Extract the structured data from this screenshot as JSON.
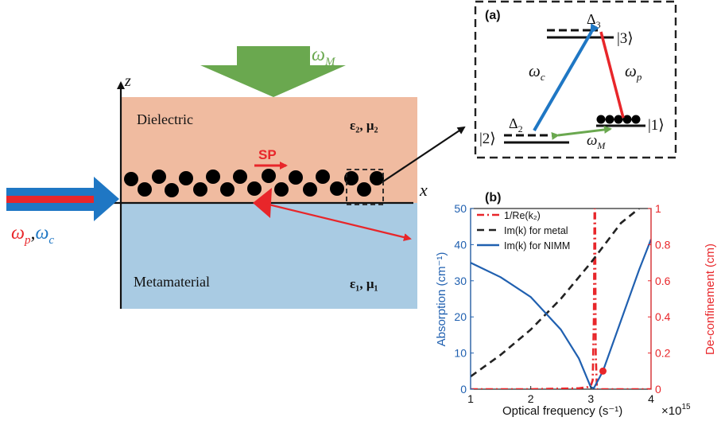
{
  "schematic": {
    "axis_z": "z",
    "axis_x": "x",
    "pump_label": "ω",
    "pump_sub": "M",
    "upper_medium": "Dielectric",
    "upper_params": "ε₂,  μ₂",
    "lower_medium": "Metamaterial",
    "lower_params": "ε₁,  μ₁",
    "sp_label": "SP",
    "probe_label_p": "ω",
    "probe_sub_p": "p",
    "comma": ",",
    "probe_label_c": "ω",
    "probe_sub_c": "c",
    "colors": {
      "dielectric": "#f0bba0",
      "metamaterial": "#a9cbe3",
      "pump_arrow": "#6aa84f",
      "probe_red": "#e8262a",
      "probe_blue": "#1f77c4",
      "sp_red": "#e8262a"
    }
  },
  "level_diagram": {
    "panel_label": "(a)",
    "delta3": "Δ",
    "delta3_sub": "3",
    "delta2": "Δ",
    "delta2_sub": "2",
    "ket3": "|3⟩",
    "ket2": "|2⟩",
    "ket1": "|1⟩",
    "coupling": "ω",
    "coupling_sub": "c",
    "probe": "ω",
    "probe_sub": "p",
    "microwave": "ω",
    "microwave_sub": "M"
  },
  "chart_data": {
    "type": "line",
    "panel_label": "(b)",
    "xlabel": "Optical frequency (s⁻¹)",
    "x_multiplier": "×10",
    "x_multiplier_exp": "15",
    "ylabel_left": "Absorption (cm⁻¹)",
    "ylabel_right": "De-confinement (cm)",
    "xlim": [
      1,
      4
    ],
    "ylim_left": [
      0,
      50
    ],
    "ylim_right": [
      0,
      1
    ],
    "x_ticks": [
      "1",
      "2",
      "3",
      "4"
    ],
    "y_ticks_left": [
      "0",
      "10",
      "20",
      "30",
      "40",
      "50"
    ],
    "y_ticks_right": [
      "0",
      "0.2",
      "0.4",
      "0.6",
      "0.8",
      "1"
    ],
    "series": [
      {
        "name": "1/Re(k₂)",
        "axis": "right",
        "color": "#e8262a",
        "style": "dashdot",
        "x": [
          1.0,
          2.0,
          2.8,
          2.95,
          3.0,
          3.03,
          3.05,
          3.06,
          3.07,
          3.08,
          3.1,
          3.2,
          4.0
        ],
        "y": [
          0.0,
          0.0,
          0.005,
          0.012,
          0.02,
          0.05,
          0.4,
          1.0,
          1.0,
          0.2,
          0.0,
          0.0,
          0.0
        ]
      },
      {
        "name": "Im(k) for metal",
        "axis": "left",
        "color": "#222222",
        "style": "dashed",
        "x": [
          1.0,
          1.5,
          2.0,
          2.5,
          3.0,
          3.5,
          3.8
        ],
        "y": [
          3.5,
          9.5,
          16.5,
          25.0,
          35.0,
          46.0,
          50.0
        ]
      },
      {
        "name": "Im(k) for NIMM",
        "axis": "left",
        "color": "#2060b0",
        "style": "solid",
        "x": [
          1.0,
          1.5,
          2.0,
          2.5,
          2.8,
          3.0,
          3.05,
          3.2,
          3.5,
          3.8,
          4.0
        ],
        "y": [
          35.0,
          31.0,
          25.5,
          16.5,
          8.5,
          0.5,
          0.3,
          5.0,
          19.0,
          33.0,
          41.5
        ]
      }
    ],
    "marker": {
      "x": 3.2,
      "y": 0.1,
      "axis": "right",
      "color": "#e8262a"
    }
  }
}
